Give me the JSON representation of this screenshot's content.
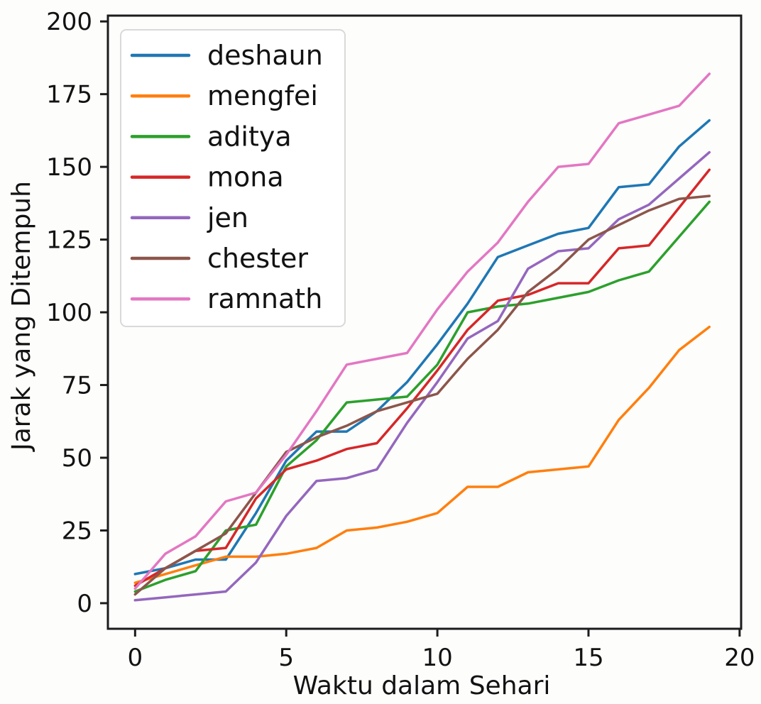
{
  "chart_data": {
    "type": "line",
    "title": "",
    "xlabel": "Waktu dalam Sehari",
    "ylabel": "Jarak yang Ditempuh",
    "x_ticks": [
      0,
      5,
      10,
      15,
      20
    ],
    "y_ticks": [
      0,
      25,
      50,
      75,
      100,
      125,
      150,
      175,
      200
    ],
    "xlim": [
      -0.9,
      20.05
    ],
    "ylim": [
      -8.8,
      202
    ],
    "grid": false,
    "legend_position": "upper left",
    "background_color": "#fdfdfc",
    "axis_color": "#1c1c1c",
    "x": [
      0,
      1,
      2,
      3,
      4,
      5,
      6,
      7,
      8,
      9,
      10,
      11,
      12,
      13,
      14,
      15,
      16,
      17,
      18,
      19
    ],
    "series": [
      {
        "name": "deshaun",
        "color": "#1f77b4",
        "values": [
          10,
          12,
          15,
          15,
          31,
          49,
          59,
          59,
          66,
          76,
          89,
          103,
          119,
          123,
          127,
          129,
          143,
          144,
          157,
          166
        ]
      },
      {
        "name": "mengfei",
        "color": "#ff7f0e",
        "values": [
          7,
          10,
          13,
          16,
          16,
          17,
          19,
          25,
          26,
          28,
          31,
          40,
          40,
          45,
          46,
          47,
          63,
          74,
          87,
          95
        ]
      },
      {
        "name": "aditya",
        "color": "#2ca02c",
        "values": [
          4,
          8,
          11,
          25,
          27,
          47,
          56,
          69,
          70,
          71,
          82,
          100,
          102,
          103,
          105,
          107,
          111,
          114,
          126,
          138
        ]
      },
      {
        "name": "mona",
        "color": "#d62728",
        "values": [
          6,
          12,
          18,
          19,
          36,
          46,
          49,
          53,
          55,
          67,
          80,
          94,
          104,
          106,
          110,
          110,
          122,
          123,
          136,
          149
        ]
      },
      {
        "name": "jen",
        "color": "#9467bd",
        "values": [
          1,
          2,
          3,
          4,
          14,
          30,
          42,
          43,
          46,
          62,
          76,
          91,
          97,
          115,
          121,
          122,
          132,
          137,
          146,
          155
        ]
      },
      {
        "name": "chester",
        "color": "#8c564b",
        "values": [
          3,
          12,
          18,
          24,
          38,
          52,
          57,
          61,
          66,
          69,
          72,
          84,
          94,
          107,
          115,
          125,
          130,
          135,
          139,
          140
        ]
      },
      {
        "name": "ramnath",
        "color": "#e377c2",
        "values": [
          5,
          17,
          23,
          35,
          38,
          51,
          66,
          82,
          84,
          86,
          101,
          114,
          124,
          138,
          150,
          151,
          165,
          168,
          171,
          182
        ]
      }
    ]
  }
}
